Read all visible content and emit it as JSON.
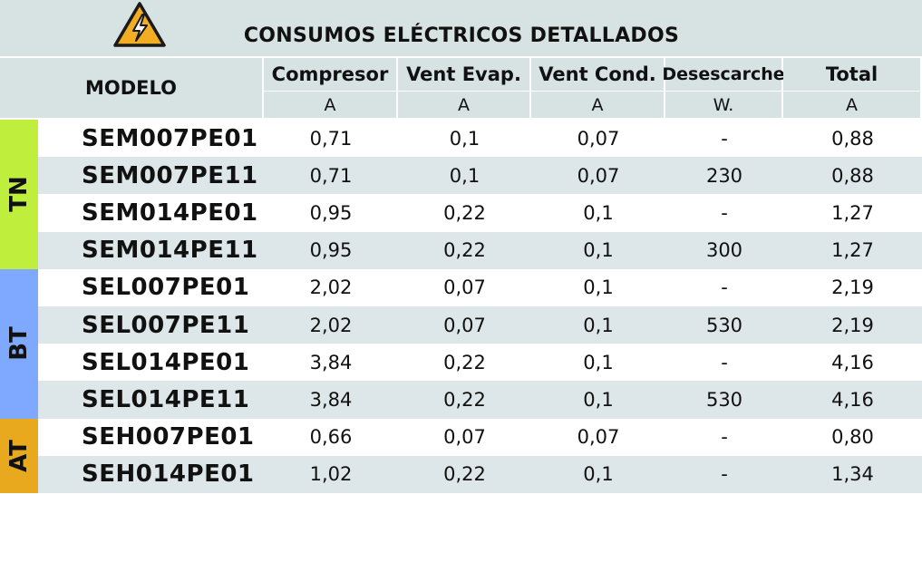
{
  "title": "CONSUMOS ELÉCTRICOS DETALLADOS",
  "warning_icon": "high-voltage-warning-icon",
  "columns": {
    "model": "MODELO",
    "heads": [
      "Compresor",
      "Vent Evap.",
      "Vent Cond.",
      "Desescarche",
      "Total"
    ],
    "units": [
      "A",
      "A",
      "A",
      "W.",
      "A"
    ]
  },
  "groups": [
    {
      "label": "TN",
      "color": "#bfee3c"
    },
    {
      "label": "BT",
      "color": "#7fa9ff"
    },
    {
      "label": "AT",
      "color": "#e8a91e"
    }
  ],
  "rows": [
    {
      "model": "SEM007PE01",
      "values": [
        "0,71",
        "0,1",
        "0,07",
        "-",
        "0,88"
      ]
    },
    {
      "model": "SEM007PE11",
      "values": [
        "0,71",
        "0,1",
        "0,07",
        "230",
        "0,88"
      ]
    },
    {
      "model": "SEM014PE01",
      "values": [
        "0,95",
        "0,22",
        "0,1",
        "-",
        "1,27"
      ]
    },
    {
      "model": "SEM014PE11",
      "values": [
        "0,95",
        "0,22",
        "0,1",
        "300",
        "1,27"
      ]
    },
    {
      "model": "SEL007PE01",
      "values": [
        "2,02",
        "0,07",
        "0,1",
        "-",
        "2,19"
      ]
    },
    {
      "model": "SEL007PE11",
      "values": [
        "2,02",
        "0,07",
        "0,1",
        "530",
        "2,19"
      ]
    },
    {
      "model": "SEL014PE01",
      "values": [
        "3,84",
        "0,22",
        "0,1",
        "-",
        "4,16"
      ]
    },
    {
      "model": "SEL014PE11",
      "values": [
        "3,84",
        "0,22",
        "0,1",
        "530",
        "4,16"
      ]
    },
    {
      "model": "SEH007PE01",
      "values": [
        "0,66",
        "0,07",
        "0,07",
        "-",
        "0,80"
      ]
    },
    {
      "model": "SEH014PE01",
      "values": [
        "1,02",
        "0,22",
        "0,1",
        "-",
        "1,34"
      ]
    }
  ]
}
